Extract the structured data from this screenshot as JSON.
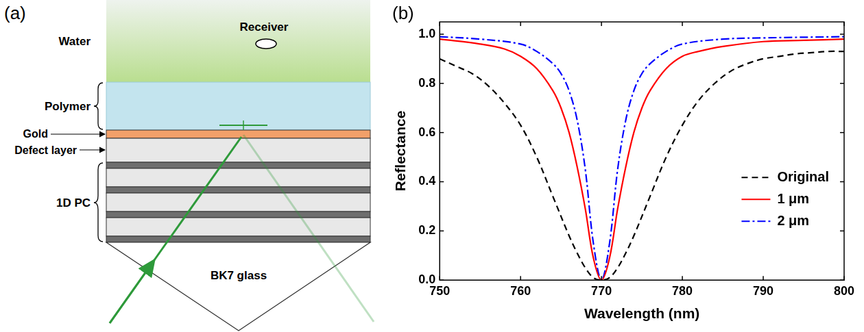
{
  "diagram": {
    "panel_label": "(a)",
    "regions": {
      "water": "Water",
      "polymer": "Polymer",
      "gold": "Gold",
      "defect_layer": "Defect layer",
      "photonic_crystal": "1D PC",
      "prism": "BK7 glass"
    },
    "receiver": "Receiver"
  },
  "chart_data": {
    "type": "line",
    "panel_label": "(b)",
    "x_label": "Wavelength (nm)",
    "y_label": "Reflectance",
    "xlim": [
      750,
      800
    ],
    "xticks": [
      750,
      760,
      770,
      780,
      790,
      800
    ],
    "ylim": [
      0,
      1.05
    ],
    "yticks": [
      {
        "value": 0,
        "label": "0.0"
      },
      0.2,
      0.4,
      0.6,
      0.8,
      {
        "value": 1,
        "label": "1.0"
      }
    ],
    "grid": false,
    "legend": "lower right",
    "series": [
      {
        "name": "Original",
        "color": "#000000",
        "line_style": "dashed",
        "x": [
          750,
          752,
          754,
          756,
          758,
          760,
          762,
          764,
          766,
          767,
          768,
          769,
          770,
          771,
          772,
          773,
          774,
          776,
          778,
          780,
          782,
          784,
          786,
          788,
          790,
          792,
          794,
          796,
          798,
          800
        ],
        "values": [
          0.9,
          0.87,
          0.84,
          0.79,
          0.72,
          0.63,
          0.5,
          0.34,
          0.18,
          0.11,
          0.05,
          0.01,
          0.0,
          0.01,
          0.05,
          0.11,
          0.18,
          0.34,
          0.5,
          0.63,
          0.73,
          0.8,
          0.85,
          0.88,
          0.9,
          0.91,
          0.92,
          0.925,
          0.93,
          0.93
        ]
      },
      {
        "name": "1 μm",
        "color": "#ff0000",
        "line_style": "solid",
        "x": [
          750,
          755,
          758,
          760,
          762,
          764,
          765,
          766,
          767,
          768,
          769,
          770,
          771,
          772,
          773,
          774,
          775,
          776,
          778,
          780,
          782,
          785,
          790,
          795,
          800
        ],
        "values": [
          0.98,
          0.96,
          0.94,
          0.91,
          0.86,
          0.77,
          0.7,
          0.6,
          0.46,
          0.29,
          0.09,
          0.0,
          0.09,
          0.29,
          0.46,
          0.6,
          0.7,
          0.77,
          0.86,
          0.91,
          0.93,
          0.95,
          0.97,
          0.975,
          0.98
        ]
      },
      {
        "name": "2 μm",
        "color": "#0000ff",
        "line_style": "dashdot",
        "x": [
          750,
          755,
          760,
          762,
          764,
          765,
          766,
          767,
          768,
          769,
          770,
          771,
          772,
          773,
          774,
          775,
          776,
          778,
          780,
          785,
          790,
          800
        ],
        "values": [
          0.99,
          0.98,
          0.96,
          0.93,
          0.88,
          0.84,
          0.77,
          0.65,
          0.45,
          0.15,
          0.0,
          0.15,
          0.45,
          0.65,
          0.77,
          0.84,
          0.88,
          0.93,
          0.96,
          0.98,
          0.985,
          0.99
        ]
      }
    ]
  }
}
